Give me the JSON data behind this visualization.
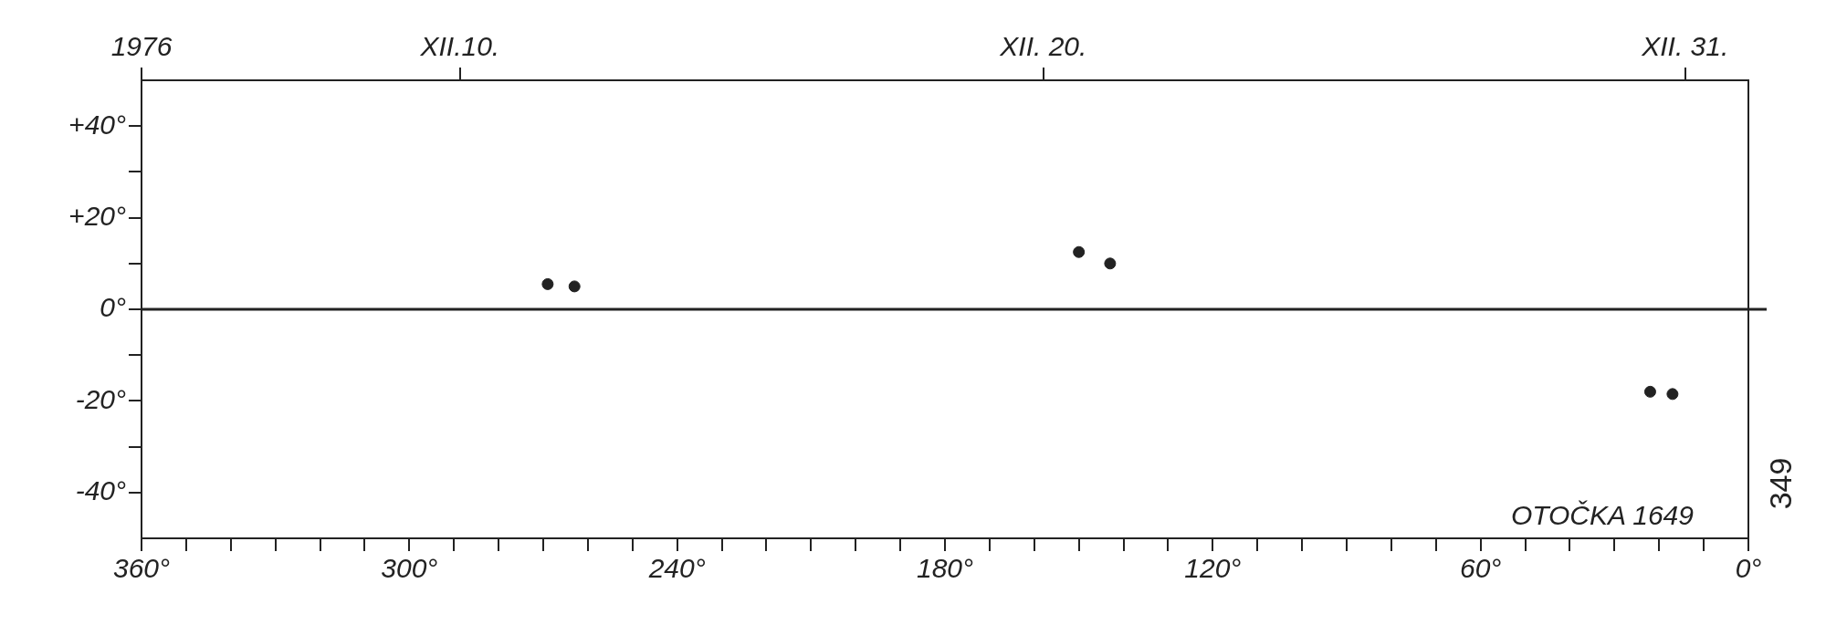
{
  "chart_data": {
    "type": "scatter",
    "x": [
      269,
      263,
      150,
      143,
      22,
      17
    ],
    "values": [
      5.5,
      5,
      12.5,
      10,
      -18,
      -18.5
    ],
    "color": "#222222",
    "marker": "circle",
    "xlim": [
      360,
      0
    ],
    "xticks": [
      {
        "value": 360,
        "label": "360°"
      },
      {
        "value": 350,
        "label": null
      },
      {
        "value": 340,
        "label": null
      },
      {
        "value": 330,
        "label": null
      },
      {
        "value": 320,
        "label": null
      },
      {
        "value": 310,
        "label": null
      },
      {
        "value": 300,
        "label": "300°"
      },
      {
        "value": 290,
        "label": null
      },
      {
        "value": 280,
        "label": null
      },
      {
        "value": 270,
        "label": null
      },
      {
        "value": 260,
        "label": null
      },
      {
        "value": 250,
        "label": null
      },
      {
        "value": 240,
        "label": "240°"
      },
      {
        "value": 230,
        "label": null
      },
      {
        "value": 220,
        "label": null
      },
      {
        "value": 210,
        "label": null
      },
      {
        "value": 200,
        "label": null
      },
      {
        "value": 190,
        "label": null
      },
      {
        "value": 180,
        "label": "180°"
      },
      {
        "value": 170,
        "label": null
      },
      {
        "value": 160,
        "label": null
      },
      {
        "value": 150,
        "label": null
      },
      {
        "value": 140,
        "label": null
      },
      {
        "value": 130,
        "label": null
      },
      {
        "value": 120,
        "label": "120°"
      },
      {
        "value": 110,
        "label": null
      },
      {
        "value": 100,
        "label": null
      },
      {
        "value": 90,
        "label": null
      },
      {
        "value": 80,
        "label": null
      },
      {
        "value": 70,
        "label": null
      },
      {
        "value": 60,
        "label": "60°"
      },
      {
        "value": 50,
        "label": null
      },
      {
        "value": 40,
        "label": null
      },
      {
        "value": 30,
        "label": null
      },
      {
        "value": 20,
        "label": null
      },
      {
        "value": 10,
        "label": null
      },
      {
        "value": 0,
        "label": "0°"
      }
    ],
    "x2lim": [
      "1976-12-04T13:00",
      "1977-01-01T02:00"
    ],
    "x2ticks": [
      {
        "value": "1976-12-04T13:00",
        "label": "1976"
      },
      {
        "value": "1976-12-10",
        "label": "XII.10."
      },
      {
        "value": "1976-12-20",
        "label": "XII. 20."
      },
      {
        "value": "1976-12-31",
        "label": "XII. 31."
      }
    ],
    "ylim": [
      -50,
      50
    ],
    "yticks": [
      {
        "value": -40,
        "label": "-40°"
      },
      {
        "value": -30,
        "label": null
      },
      {
        "value": -20,
        "label": "-20°"
      },
      {
        "value": -10,
        "label": null
      },
      {
        "value": 0,
        "label": "0°"
      },
      {
        "value": 10,
        "label": null
      },
      {
        "value": 20,
        "label": "+20°"
      },
      {
        "value": 30,
        "label": null
      },
      {
        "value": 40,
        "label": "+40°"
      }
    ],
    "ref_lines": [
      {
        "axis": "y",
        "value": 0,
        "color": "#222222"
      }
    ],
    "annotations": [
      "OTOČKA 1649",
      "349"
    ]
  }
}
